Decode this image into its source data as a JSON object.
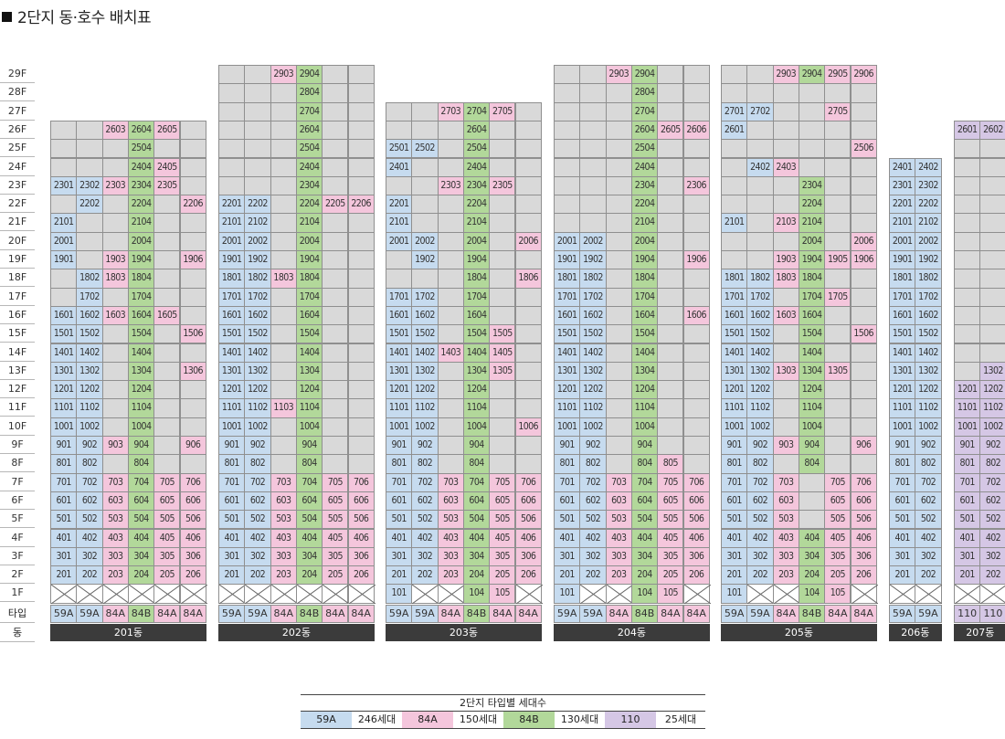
{
  "title": "2단지 동·호수 배치표",
  "colors": {
    "59A": "#c6dbef",
    "84A": "#f4c6dc",
    "84B": "#b2d89a",
    "110": "#d5c7e5",
    "empty": "#d9d9d9"
  },
  "floors": [
    "29F",
    "28F",
    "27F",
    "26F",
    "25F",
    "24F",
    "23F",
    "22F",
    "21F",
    "20F",
    "19F",
    "18F",
    "17F",
    "16F",
    "15F",
    "14F",
    "13F",
    "12F",
    "11F",
    "10F",
    "9F",
    "8F",
    "7F",
    "6F",
    "5F",
    "4F",
    "3F",
    "2F",
    "1F"
  ],
  "type_row_label": "타입",
  "dong_row_label": "동",
  "buildings": [
    {
      "name": "201동",
      "types": [
        "59A",
        "59A",
        "84A",
        "84B",
        "84A",
        "84A"
      ],
      "units": {
        "26": {
          "3": "2603",
          "4": "2604",
          "5": "2605"
        },
        "25": {
          "4": "2504"
        },
        "24": {
          "4": "2404",
          "5": "2405"
        },
        "23": {
          "1": "2301",
          "2": "2302",
          "3": "2303",
          "4": "2304",
          "5": "2305"
        },
        "22": {
          "2": "2202",
          "4": "2204",
          "6": "2206"
        },
        "21": {
          "1": "2101",
          "4": "2104"
        },
        "20": {
          "1": "2001",
          "4": "2004"
        },
        "19": {
          "1": "1901",
          "3": "1903",
          "4": "1904",
          "6": "1906"
        },
        "18": {
          "2": "1802",
          "3": "1803",
          "4": "1804"
        },
        "17": {
          "2": "1702",
          "4": "1704"
        },
        "16": {
          "1": "1601",
          "2": "1602",
          "3": "1603",
          "4": "1604",
          "5": "1605"
        },
        "15": {
          "1": "1501",
          "2": "1502",
          "4": "1504",
          "6": "1506"
        },
        "14": {
          "1": "1401",
          "2": "1402",
          "4": "1404"
        },
        "13": {
          "1": "1301",
          "2": "1302",
          "4": "1304",
          "6": "1306"
        },
        "12": {
          "1": "1201",
          "2": "1202",
          "4": "1204"
        },
        "11": {
          "1": "1101",
          "2": "1102",
          "4": "1104"
        },
        "10": {
          "1": "1001",
          "2": "1002",
          "4": "1004"
        },
        "9": {
          "1": "901",
          "2": "902",
          "3": "903",
          "4": "904",
          "6": "906"
        },
        "8": {
          "1": "801",
          "2": "802",
          "4": "804"
        },
        "7": {
          "1": "701",
          "2": "702",
          "3": "703",
          "4": "704",
          "5": "705",
          "6": "706"
        },
        "6": {
          "1": "601",
          "2": "602",
          "3": "603",
          "4": "604",
          "5": "605",
          "6": "606"
        },
        "5": {
          "1": "501",
          "2": "502",
          "3": "503",
          "4": "504",
          "5": "505",
          "6": "506"
        },
        "4": {
          "1": "401",
          "2": "402",
          "3": "403",
          "4": "404",
          "5": "405",
          "6": "406"
        },
        "3": {
          "1": "301",
          "2": "302",
          "3": "303",
          "4": "304",
          "5": "305",
          "6": "306"
        },
        "2": {
          "1": "201",
          "2": "202",
          "3": "203",
          "4": "204",
          "5": "205",
          "6": "206"
        },
        "1": {}
      }
    },
    {
      "name": "202동",
      "types": [
        "59A",
        "59A",
        "84A",
        "84B",
        "84A",
        "84A"
      ],
      "units": {
        "29": {
          "3": "2903",
          "4": "2904"
        },
        "28": {
          "4": "2804"
        },
        "27": {
          "4": "2704"
        },
        "26": {
          "4": "2604"
        },
        "25": {
          "4": "2504"
        },
        "24": {
          "4": "2404"
        },
        "23": {
          "4": "2304"
        },
        "22": {
          "1": "2201",
          "2": "2202",
          "4": "2204",
          "5": "2205",
          "6": "2206"
        },
        "21": {
          "1": "2101",
          "2": "2102",
          "4": "2104"
        },
        "20": {
          "1": "2001",
          "2": "2002",
          "4": "2004"
        },
        "19": {
          "1": "1901",
          "2": "1902",
          "4": "1904"
        },
        "18": {
          "1": "1801",
          "2": "1802",
          "3": "1803",
          "4": "1804"
        },
        "17": {
          "1": "1701",
          "2": "1702",
          "4": "1704"
        },
        "16": {
          "1": "1601",
          "2": "1602",
          "4": "1604"
        },
        "15": {
          "1": "1501",
          "2": "1502",
          "4": "1504"
        },
        "14": {
          "1": "1401",
          "2": "1402",
          "4": "1404"
        },
        "13": {
          "1": "1301",
          "2": "1302",
          "4": "1304"
        },
        "12": {
          "1": "1201",
          "2": "1202",
          "4": "1204"
        },
        "11": {
          "1": "1101",
          "2": "1102",
          "3": "1103",
          "4": "1104"
        },
        "10": {
          "1": "1001",
          "2": "1002",
          "4": "1004"
        },
        "9": {
          "1": "901",
          "2": "902",
          "4": "904"
        },
        "8": {
          "1": "801",
          "2": "802",
          "4": "804"
        },
        "7": {
          "1": "701",
          "2": "702",
          "3": "703",
          "4": "704",
          "5": "705",
          "6": "706"
        },
        "6": {
          "1": "601",
          "2": "602",
          "3": "603",
          "4": "604",
          "5": "605",
          "6": "606"
        },
        "5": {
          "1": "501",
          "2": "502",
          "3": "503",
          "4": "504",
          "5": "505",
          "6": "506"
        },
        "4": {
          "1": "401",
          "2": "402",
          "3": "403",
          "4": "404",
          "5": "405",
          "6": "406"
        },
        "3": {
          "1": "301",
          "2": "302",
          "3": "303",
          "4": "304",
          "5": "305",
          "6": "306"
        },
        "2": {
          "1": "201",
          "2": "202",
          "3": "203",
          "4": "204",
          "5": "205",
          "6": "206"
        },
        "1": {}
      }
    },
    {
      "name": "203동",
      "types": [
        "59A",
        "59A",
        "84A",
        "84B",
        "84A",
        "84A"
      ],
      "units": {
        "27": {
          "3": "2703",
          "4": "2704",
          "5": "2705"
        },
        "26": {
          "4": "2604"
        },
        "25": {
          "1": "2501",
          "2": "2502",
          "4": "2504"
        },
        "24": {
          "1": "2401",
          "4": "2404"
        },
        "23": {
          "3": "2303",
          "4": "2304",
          "5": "2305"
        },
        "22": {
          "1": "2201",
          "4": "2204"
        },
        "21": {
          "1": "2101",
          "4": "2104"
        },
        "20": {
          "1": "2001",
          "2": "2002",
          "4": "2004",
          "6": "2006"
        },
        "19": {
          "2": "1902",
          "4": "1904"
        },
        "18": {
          "4": "1804",
          "6": "1806"
        },
        "17": {
          "1": "1701",
          "2": "1702",
          "4": "1704"
        },
        "16": {
          "1": "1601",
          "2": "1602",
          "4": "1604"
        },
        "15": {
          "1": "1501",
          "2": "1502",
          "4": "1504",
          "5": "1505"
        },
        "14": {
          "1": "1401",
          "2": "1402",
          "3": "1403",
          "4": "1404",
          "5": "1405"
        },
        "13": {
          "1": "1301",
          "2": "1302",
          "4": "1304",
          "5": "1305"
        },
        "12": {
          "1": "1201",
          "2": "1202",
          "4": "1204"
        },
        "11": {
          "1": "1101",
          "2": "1102",
          "4": "1104"
        },
        "10": {
          "1": "1001",
          "2": "1002",
          "4": "1004",
          "6": "1006"
        },
        "9": {
          "1": "901",
          "2": "902",
          "4": "904"
        },
        "8": {
          "1": "801",
          "2": "802",
          "4": "804"
        },
        "7": {
          "1": "701",
          "2": "702",
          "3": "703",
          "4": "704",
          "5": "705",
          "6": "706"
        },
        "6": {
          "1": "601",
          "2": "602",
          "3": "603",
          "4": "604",
          "5": "605",
          "6": "606"
        },
        "5": {
          "1": "501",
          "2": "502",
          "3": "503",
          "4": "504",
          "5": "505",
          "6": "506"
        },
        "4": {
          "1": "401",
          "2": "402",
          "3": "403",
          "4": "404",
          "5": "405",
          "6": "406"
        },
        "3": {
          "1": "301",
          "2": "302",
          "3": "303",
          "4": "304",
          "5": "305",
          "6": "306"
        },
        "2": {
          "1": "201",
          "2": "202",
          "3": "203",
          "4": "204",
          "5": "205",
          "6": "206"
        },
        "1": {
          "1": "101",
          "4": "104",
          "5": "105"
        }
      }
    },
    {
      "name": "204동",
      "types": [
        "59A",
        "59A",
        "84A",
        "84B",
        "84A",
        "84A"
      ],
      "units": {
        "29": {
          "3": "2903",
          "4": "2904"
        },
        "28": {
          "4": "2804"
        },
        "27": {
          "4": "2704"
        },
        "26": {
          "4": "2604",
          "5": "2605",
          "6": "2606"
        },
        "25": {
          "4": "2504"
        },
        "24": {
          "4": "2404"
        },
        "23": {
          "4": "2304",
          "6": "2306"
        },
        "22": {
          "4": "2204"
        },
        "21": {
          "4": "2104"
        },
        "20": {
          "1": "2001",
          "2": "2002",
          "4": "2004"
        },
        "19": {
          "1": "1901",
          "2": "1902",
          "4": "1904",
          "6": "1906"
        },
        "18": {
          "1": "1801",
          "2": "1802",
          "4": "1804"
        },
        "17": {
          "1": "1701",
          "2": "1702",
          "4": "1704"
        },
        "16": {
          "1": "1601",
          "2": "1602",
          "4": "1604",
          "6": "1606"
        },
        "15": {
          "1": "1501",
          "2": "1502",
          "4": "1504"
        },
        "14": {
          "1": "1401",
          "2": "1402",
          "4": "1404"
        },
        "13": {
          "1": "1301",
          "2": "1302",
          "4": "1304"
        },
        "12": {
          "1": "1201",
          "2": "1202",
          "4": "1204"
        },
        "11": {
          "1": "1101",
          "2": "1102",
          "4": "1104"
        },
        "10": {
          "1": "1001",
          "2": "1002",
          "4": "1004"
        },
        "9": {
          "1": "901",
          "2": "902",
          "4": "904"
        },
        "8": {
          "1": "801",
          "2": "802",
          "4": "804",
          "5": "805"
        },
        "7": {
          "1": "701",
          "2": "702",
          "3": "703",
          "4": "704",
          "5": "705",
          "6": "706"
        },
        "6": {
          "1": "601",
          "2": "602",
          "3": "603",
          "4": "604",
          "5": "605",
          "6": "606"
        },
        "5": {
          "1": "501",
          "2": "502",
          "3": "503",
          "4": "504",
          "5": "505",
          "6": "506"
        },
        "4": {
          "1": "401",
          "2": "402",
          "3": "403",
          "4": "404",
          "5": "405",
          "6": "406"
        },
        "3": {
          "1": "301",
          "2": "302",
          "3": "303",
          "4": "304",
          "5": "305",
          "6": "306"
        },
        "2": {
          "1": "201",
          "2": "202",
          "3": "203",
          "4": "204",
          "5": "205",
          "6": "206"
        },
        "1": {
          "1": "101",
          "4": "104",
          "5": "105"
        }
      }
    },
    {
      "name": "205동",
      "types": [
        "59A",
        "59A",
        "84A",
        "84B",
        "84A",
        "84A"
      ],
      "units": {
        "29": {
          "3": "2903",
          "4": "2904",
          "5": "2905",
          "6": "2906"
        },
        "27": {
          "1": "2701",
          "2": "2702",
          "5": "2705"
        },
        "26": {
          "1": "2601"
        },
        "25": {
          "6": "2506"
        },
        "24": {
          "2": "2402",
          "3": "2403"
        },
        "23": {
          "4": "2304"
        },
        "22": {
          "4": "2204"
        },
        "21": {
          "1": "2101",
          "3": "2103",
          "4": "2104"
        },
        "20": {
          "4": "2004",
          "6": "2006"
        },
        "19": {
          "3": "1903",
          "4": "1904",
          "5": "1905",
          "6": "1906"
        },
        "18": {
          "1": "1801",
          "2": "1802",
          "3": "1803",
          "4": "1804"
        },
        "17": {
          "1": "1701",
          "2": "1702",
          "4": "1704",
          "5": "1705"
        },
        "16": {
          "1": "1601",
          "2": "1602",
          "3": "1603",
          "4": "1604"
        },
        "15": {
          "1": "1501",
          "2": "1502",
          "4": "1504",
          "6": "1506"
        },
        "14": {
          "1": "1401",
          "2": "1402",
          "4": "1404"
        },
        "13": {
          "1": "1301",
          "2": "1302",
          "3": "1303",
          "4": "1304",
          "5": "1305"
        },
        "12": {
          "1": "1201",
          "2": "1202",
          "4": "1204"
        },
        "11": {
          "1": "1101",
          "2": "1102",
          "4": "1104"
        },
        "10": {
          "1": "1001",
          "2": "1002",
          "4": "1004"
        },
        "9": {
          "1": "901",
          "2": "902",
          "3": "903",
          "4": "904",
          "6": "906"
        },
        "8": {
          "1": "801",
          "2": "802",
          "4": "804"
        },
        "7": {
          "1": "701",
          "2": "702",
          "3": "703",
          "5": "705",
          "6": "706"
        },
        "6": {
          "1": "601",
          "2": "602",
          "3": "603",
          "5": "605",
          "6": "606"
        },
        "5": {
          "1": "501",
          "2": "502",
          "3": "503",
          "5": "505",
          "6": "506"
        },
        "4": {
          "1": "401",
          "2": "402",
          "3": "403",
          "4": "404",
          "5": "405",
          "6": "406"
        },
        "3": {
          "1": "301",
          "2": "302",
          "3": "303",
          "4": "304",
          "5": "305",
          "6": "306"
        },
        "2": {
          "1": "201",
          "2": "202",
          "3": "203",
          "4": "204",
          "5": "205",
          "6": "206"
        },
        "1": {
          "1": "101",
          "4": "104",
          "5": "105"
        }
      }
    },
    {
      "name": "206동",
      "types": [
        "59A",
        "59A"
      ],
      "units": {
        "24": {
          "1": "2401",
          "2": "2402"
        },
        "23": {
          "1": "2301",
          "2": "2302"
        },
        "22": {
          "1": "2201",
          "2": "2202"
        },
        "21": {
          "1": "2101",
          "2": "2102"
        },
        "20": {
          "1": "2001",
          "2": "2002"
        },
        "19": {
          "1": "1901",
          "2": "1902"
        },
        "18": {
          "1": "1801",
          "2": "1802"
        },
        "17": {
          "1": "1701",
          "2": "1702"
        },
        "16": {
          "1": "1601",
          "2": "1602"
        },
        "15": {
          "1": "1501",
          "2": "1502"
        },
        "14": {
          "1": "1401",
          "2": "1402"
        },
        "13": {
          "1": "1301",
          "2": "1302"
        },
        "12": {
          "1": "1201",
          "2": "1202"
        },
        "11": {
          "1": "1101",
          "2": "1102"
        },
        "10": {
          "1": "1001",
          "2": "1002"
        },
        "9": {
          "1": "901",
          "2": "902"
        },
        "8": {
          "1": "801",
          "2": "802"
        },
        "7": {
          "1": "701",
          "2": "702"
        },
        "6": {
          "1": "601",
          "2": "602"
        },
        "5": {
          "1": "501",
          "2": "502"
        },
        "4": {
          "1": "401",
          "2": "402"
        },
        "3": {
          "1": "301",
          "2": "302"
        },
        "2": {
          "1": "201",
          "2": "202"
        },
        "1": {}
      }
    },
    {
      "name": "207동",
      "types": [
        "110",
        "110"
      ],
      "units": {
        "26": {
          "1": "2601",
          "2": "2602"
        },
        "13": {
          "2": "1302"
        },
        "12": {
          "1": "1201",
          "2": "1202"
        },
        "11": {
          "1": "1101",
          "2": "1102"
        },
        "10": {
          "1": "1001",
          "2": "1002"
        },
        "9": {
          "1": "901",
          "2": "902"
        },
        "8": {
          "1": "801",
          "2": "802"
        },
        "7": {
          "1": "701",
          "2": "702"
        },
        "6": {
          "1": "601",
          "2": "602"
        },
        "5": {
          "1": "501",
          "2": "502"
        },
        "4": {
          "1": "401",
          "2": "402"
        },
        "3": {
          "1": "301",
          "2": "302"
        },
        "2": {
          "1": "201",
          "2": "202"
        },
        "1": {}
      }
    }
  ],
  "legend": {
    "title": "2단지 타입별 세대수",
    "items": [
      {
        "type": "59A",
        "count": "246세대"
      },
      {
        "type": "84A",
        "count": "150세대"
      },
      {
        "type": "84B",
        "count": "130세대"
      },
      {
        "type": "110",
        "count": "25세대"
      }
    ]
  }
}
